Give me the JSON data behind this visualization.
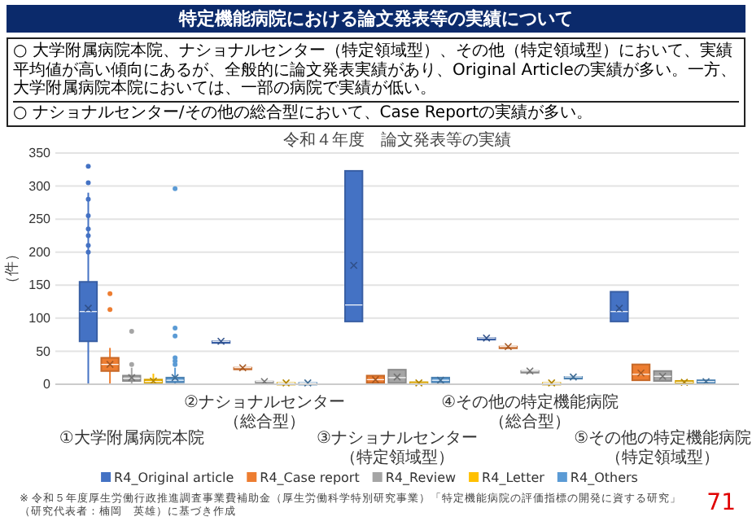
{
  "chart_data": {
    "type": "box",
    "title": "特定機能病院における論文発表等の実績について",
    "subtitle": "令和４年度　論文発表等の実績",
    "annotations": [
      "○ 大学附属病院本院、ナショナルセンター（特定領域型）、その他（特定領域型）において、実績平均値が高い傾向にあるが、全般的に論文発表実績があり、Original Articleの実績が多い。一方、大学附属病院本院においては、一部の病院で実績が低い。",
      "○ ナショナルセンター/その他の総合型において、Case Reportの実績が多い。",
      "※ 令和５年度厚生労働行政推進調査事業費補助金（厚生労働科学特別研究事業）「特定機能病院の評価指標の開発に資する研究」（研究代表者：楠岡　英雄）に基づき作成",
      "71"
    ],
    "categories": [
      "①大学附属病院本院",
      "②ナショナルセンター（総合型）",
      "③ナショナルセンター（特定領域型）",
      "④その他の特定機能病院（総合型）",
      "⑤その他の特定機能病院（特定領域型）"
    ],
    "ylabel": "（件）",
    "ylim": [
      0,
      350
    ],
    "yticks": [
      0,
      50,
      100,
      150,
      200,
      250,
      300,
      350
    ],
    "grid": "y",
    "legend": "bottom",
    "series": [
      {
        "name": "R4_Original article",
        "color": "#4472c4",
        "boxes": [
          {
            "low": 0,
            "q1": 65,
            "median": 110,
            "q3": 155,
            "high": 290,
            "mean": 115,
            "outliers": [
              330,
              305,
              280,
              255,
              235,
              225,
              210,
              200
            ]
          },
          {
            "low": 65,
            "q1": 65,
            "median": 65,
            "q3": 65,
            "high": 65,
            "mean": 65
          },
          {
            "low": 95,
            "q1": 95,
            "median": 120,
            "q3": 323,
            "high": 323,
            "mean": 180
          },
          {
            "low": 70,
            "q1": 70,
            "median": 70,
            "q3": 70,
            "high": 70,
            "mean": 70
          },
          {
            "low": 95,
            "q1": 95,
            "median": 110,
            "q3": 140,
            "high": 140,
            "mean": 115
          }
        ]
      },
      {
        "name": "R4_Case report",
        "color": "#ed7d31",
        "boxes": [
          {
            "low": 0,
            "q1": 20,
            "median": 30,
            "q3": 40,
            "high": 55,
            "mean": 30,
            "outliers": [
              137,
              113
            ]
          },
          {
            "low": 25,
            "q1": 25,
            "median": 25,
            "q3": 25,
            "high": 25,
            "mean": 25
          },
          {
            "low": 2,
            "q1": 2,
            "median": 7,
            "q3": 13,
            "high": 13,
            "mean": 7
          },
          {
            "low": 57,
            "q1": 57,
            "median": 57,
            "q3": 57,
            "high": 57,
            "mean": 57
          },
          {
            "low": 6,
            "q1": 6,
            "median": 15,
            "q3": 30,
            "high": 30,
            "mean": 17
          }
        ]
      },
      {
        "name": "R4_Review",
        "color": "#a5a5a5",
        "boxes": [
          {
            "low": 0,
            "q1": 5,
            "median": 9,
            "q3": 13,
            "high": 25,
            "mean": 10,
            "outliers": [
              80,
              30
            ]
          },
          {
            "low": 4,
            "q1": 4,
            "median": 4,
            "q3": 4,
            "high": 4,
            "mean": 4
          },
          {
            "low": 2,
            "q1": 2,
            "median": 10,
            "q3": 22,
            "high": 22,
            "mean": 11
          },
          {
            "low": 20,
            "q1": 20,
            "median": 20,
            "q3": 20,
            "high": 20,
            "mean": 20
          },
          {
            "low": 5,
            "q1": 5,
            "median": 12,
            "q3": 20,
            "high": 20,
            "mean": 12
          }
        ]
      },
      {
        "name": "R4_Letter",
        "color": "#ffc000",
        "boxes": [
          {
            "low": 0,
            "q1": 2,
            "median": 4,
            "q3": 7,
            "high": 16,
            "mean": 5
          },
          {
            "low": 2,
            "q1": 2,
            "median": 2,
            "q3": 2,
            "high": 2,
            "mean": 2
          },
          {
            "low": 0,
            "q1": 0,
            "median": 1,
            "q3": 3,
            "high": 3,
            "mean": 2
          },
          {
            "low": 2,
            "q1": 2,
            "median": 2,
            "q3": 2,
            "high": 2,
            "mean": 2
          },
          {
            "low": 2,
            "q1": 2,
            "median": 3,
            "q3": 5,
            "high": 5,
            "mean": 3
          }
        ]
      },
      {
        "name": "R4_Others",
        "color": "#5b9bd5",
        "boxes": [
          {
            "low": 0,
            "q1": 3,
            "median": 6,
            "q3": 10,
            "high": 25,
            "mean": 10,
            "outliers": [
              296,
              85,
              73,
              40,
              35,
              30
            ]
          },
          {
            "low": 2,
            "q1": 2,
            "median": 2,
            "q3": 2,
            "high": 2,
            "mean": 2
          },
          {
            "low": 3,
            "q1": 3,
            "median": 6,
            "q3": 10,
            "high": 10,
            "mean": 6
          },
          {
            "low": 11,
            "q1": 11,
            "median": 11,
            "q3": 11,
            "high": 11,
            "mean": 11
          },
          {
            "low": 2,
            "q1": 2,
            "median": 4,
            "q3": 6,
            "high": 6,
            "mean": 4
          }
        ]
      }
    ]
  }
}
